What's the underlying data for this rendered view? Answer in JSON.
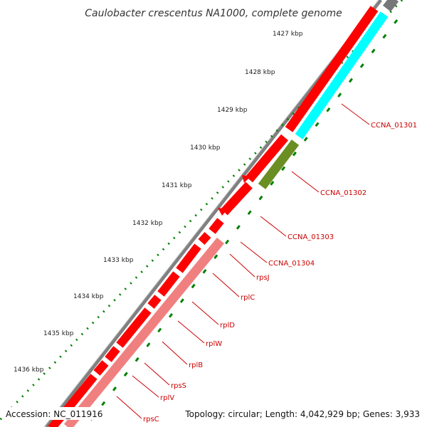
{
  "title": "Caulobacter crescentus NA1000, complete genome",
  "kbp_labels": [
    "1427 kbp",
    "1428 kbp",
    "1429 kbp",
    "1430 kbp",
    "1431 kbp",
    "1432 kbp",
    "1433 kbp",
    "1434 kbp",
    "1435 kbp",
    "1436 kbp"
  ],
  "gene_labels": [
    "CCNA_01301",
    "CCNA_01302",
    "CCNA_01303",
    "CCNA_01304",
    "rpsJ",
    "rplC",
    "rplD",
    "rplW",
    "rplB",
    "rpsS",
    "rplV",
    "rpsC"
  ],
  "footer": {
    "accession": "Accession: NC_011916",
    "summary": "Topology: circular; Length: 4,042,929 bp; Genes: 3,933"
  },
  "colors": {
    "backbone": "#808080",
    "cds": "#ff0000",
    "cds_pale": "#f08080",
    "feature_cyan": "#00ffff",
    "feature_olive": "#6b8e23",
    "tick": "#008000",
    "label": "#cc0000"
  }
}
